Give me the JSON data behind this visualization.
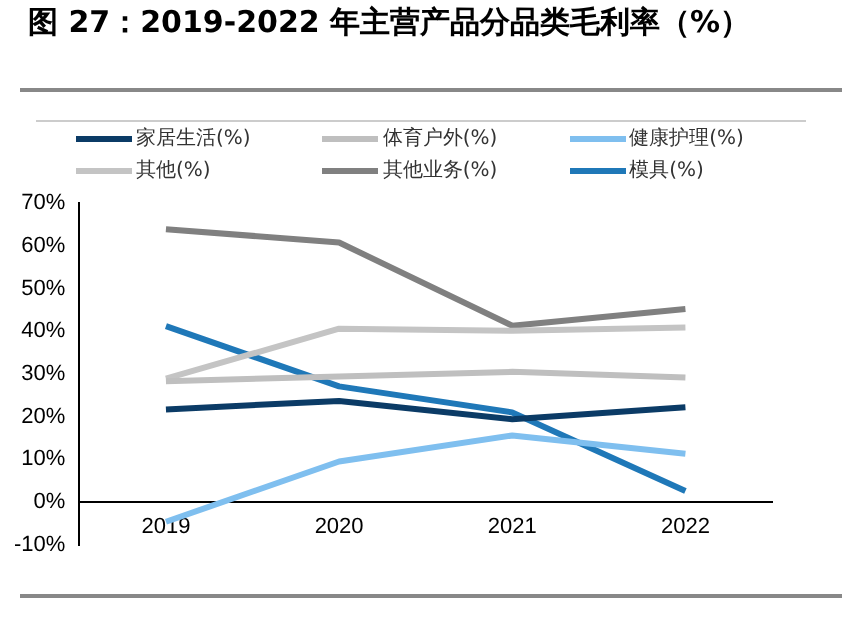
{
  "chart_data": {
    "type": "line",
    "title": "图 27：2019-2022 年主营产品分品类毛利率（%）",
    "categories": [
      "2019",
      "2020",
      "2021",
      "2022"
    ],
    "series": [
      {
        "name": "家居生活(%)",
        "color": "#0b3b66",
        "values": [
          21.7,
          23.7,
          19.4,
          22.2
        ]
      },
      {
        "name": "体育户外(%)",
        "color": "#bfbfbf",
        "values": [
          28.3,
          29.4,
          30.5,
          29.2
        ]
      },
      {
        "name": "健康护理(%)",
        "color": "#7fbfef",
        "values": [
          -4.6,
          9.5,
          15.6,
          11.3
        ]
      },
      {
        "name": "其他(%)",
        "color": "#c4c4c4",
        "values": [
          28.9,
          40.6,
          40.1,
          40.9
        ]
      },
      {
        "name": "其他业务(%)",
        "color": "#808080",
        "values": [
          63.9,
          60.8,
          41.3,
          45.2
        ]
      },
      {
        "name": "模具(%)",
        "color": "#1f78b8",
        "values": [
          41.2,
          27.1,
          21.0,
          2.6
        ]
      }
    ],
    "ylim": [
      -10,
      70
    ],
    "yticks": [
      {
        "value": -10,
        "label": "-10%"
      },
      {
        "value": 0,
        "label": "0%"
      },
      {
        "value": 10,
        "label": "10%"
      },
      {
        "value": 20,
        "label": "20%"
      },
      {
        "value": 30,
        "label": "30%"
      },
      {
        "value": 40,
        "label": "40%"
      },
      {
        "value": 50,
        "label": "50%"
      },
      {
        "value": 60,
        "label": "60%"
      },
      {
        "value": 70,
        "label": "70%"
      }
    ],
    "grid": false,
    "legend": "top",
    "marker": "none",
    "line_style": "solid"
  }
}
